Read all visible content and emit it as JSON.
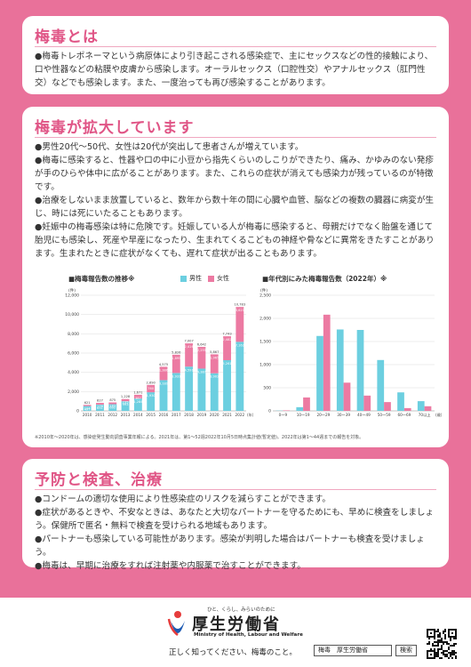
{
  "section1": {
    "title": "梅毒とは",
    "body": "●梅毒トレポネーマという病原体により引き起こされる感染症で、主にセックスなどの性的接触により、口や性器などの粘膜や皮膚から感染します。オーラルセックス（口腔性交）やアナルセックス（肛門性交）などでも感染します。また、一度治っても再び感染することがあります。"
  },
  "section2": {
    "title": "梅毒が拡大しています",
    "bullets": [
      "●男性20代〜50代、女性は20代が突出して患者さんが増えています。",
      "●梅毒に感染すると、性器や口の中に小豆から指先くらいのしこりができたり、痛み、かゆみのない発疹が手のひらや体中に広がることがあります。また、これらの症状が消えても感染力が残っているのが特徴です。",
      "●治療をしないまま放置していると、数年から数十年の間に心臓や血管、脳などの複数の臓器に病変が生じ、時には死にいたることもあります。",
      "●妊娠中の梅毒感染は特に危険です。妊娠している人が梅毒に感染すると、母親だけでなく胎盤を通じて胎児にも感染し、死産や早産になったり、生まれてくるこどもの神経や骨などに異常をきたすことがあります。生まれたときに症状がなくても、遅れて症状が出ることもあります。"
    ],
    "note": "※2010年〜2020年は、感染症発生動向調査事業年報による。2021年は、第1〜52週2022年10月5日時点集計値(暫定値)。2022年は第1〜44週までの報告を対象。"
  },
  "legend": {
    "male": "男性",
    "female": "女性"
  },
  "colors": {
    "male": "#6ccfe0",
    "female": "#ec7aa2",
    "accent": "#e05586",
    "background": "#e9719a"
  },
  "chart_data": [
    {
      "type": "bar",
      "title": "■梅毒報告数の推移※",
      "categories": [
        "2010",
        "2011",
        "2012",
        "2013",
        "2014",
        "2015",
        "2016",
        "2017",
        "2018",
        "2019",
        "2020",
        "2021",
        "2022"
      ],
      "unit_y": "(件)",
      "unit_x": "(年)",
      "ylim": [
        0,
        12000
      ],
      "yticks": [
        "0",
        "2,000",
        "4,000",
        "6,000",
        "8,000",
        "10,000",
        "12,000"
      ],
      "series": [
        {
          "name": "男性",
          "values": [
            497,
            651,
            692,
            993,
            1284,
            1930,
            3189,
            3931,
            4591,
            4387,
            3902,
            5261,
            7162
          ]
        },
        {
          "name": "女性",
          "values": [
            124,
            176,
            183,
            235,
            387,
            760,
            1386,
            1895,
            2416,
            2255,
            1965,
            2482,
            3621
          ]
        }
      ],
      "totals": [
        621,
        827,
        875,
        1228,
        1671,
        2690,
        4575,
        5826,
        7007,
        6642,
        5867,
        7743,
        10783
      ],
      "stacked": true
    },
    {
      "type": "bar",
      "title": "■年代別にみた梅毒報告数（2022年）※",
      "categories": [
        "0〜9",
        "10〜19",
        "20〜29",
        "30〜39",
        "40〜49",
        "50〜59",
        "60〜69",
        "70以上"
      ],
      "unit_y": "(件)",
      "unit_x": "(歳)",
      "ylim": [
        0,
        2500
      ],
      "yticks": [
        "0",
        "500",
        "1,000",
        "1,500",
        "2,000",
        "2,500"
      ],
      "series": [
        {
          "name": "男性",
          "values": [
            5,
            80,
            1620,
            1760,
            1750,
            1100,
            400,
            210
          ]
        },
        {
          "name": "女性",
          "values": [
            10,
            290,
            2080,
            610,
            330,
            190,
            60,
            100
          ]
        }
      ],
      "stacked": false
    }
  ],
  "section3": {
    "title": "予防と検査、治療",
    "bullets": [
      "●コンドームの適切な使用により性感染症のリスクを減らすことができます。",
      "●症状があるときや、不安なときは、あなたと大切なパートナーを守るためにも、早めに検査をしましょう。保健所で匿名・無料で検査を受けられる地域もあります。",
      "●パートナーも感染している可能性があります。感染が判明した場合はパートナーも検査を受けましょう。",
      "●梅毒は、早期に治療をすれば注射薬や内服薬で治すことができます。"
    ]
  },
  "footer": {
    "tagline": "ひと、くらし、みらいのために",
    "ministry_jp": "厚生労働省",
    "ministry_en": "Ministry of Health, Labour and Welfare",
    "slogan": "正しく知ってください、梅毒のこと。",
    "search_text": "梅毒　厚生労働省",
    "search_button": "検索"
  }
}
